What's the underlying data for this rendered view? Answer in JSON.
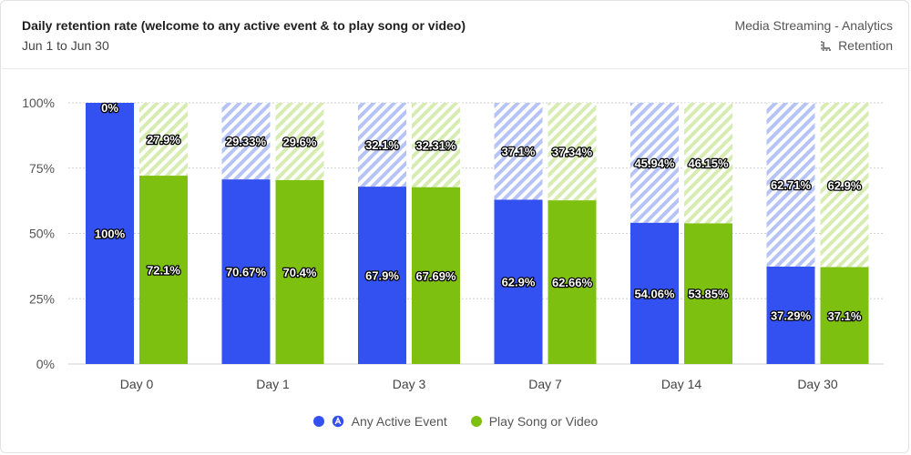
{
  "header": {
    "title": "Daily retention rate (welcome to any active event & to play song or video)",
    "date_range": "Jun 1 to Jun 30",
    "project": "Media Streaming - Analytics",
    "report_type": "Retention",
    "report_icon": "retention-icon"
  },
  "colors": {
    "series1": "#3350f0",
    "series1_hatch": "#b5c3f7",
    "series2": "#7ec010",
    "series2_hatch": "#d6ecb0",
    "grid": "#cfcfcf"
  },
  "legend": [
    {
      "label": "Any Active Event",
      "color": "#3350f0",
      "icon": "any-active-event-icon"
    },
    {
      "label": "Play Song or Video",
      "color": "#7ec010",
      "icon": ""
    }
  ],
  "chart_data": {
    "type": "bar",
    "stacked": true,
    "categories": [
      "Day 0",
      "Day 1",
      "Day 3",
      "Day 7",
      "Day 14",
      "Day 30"
    ],
    "ylim": [
      0,
      100
    ],
    "yticks": [
      "0%",
      "25%",
      "50%",
      "75%",
      "100%"
    ],
    "grid": true,
    "legend_position": "bottom",
    "series": [
      {
        "name": "Any Active Event",
        "retained": [
          100,
          70.67,
          67.9,
          62.9,
          54.06,
          37.29
        ],
        "retained_labels": [
          "100%",
          "70.67%",
          "67.9%",
          "62.9%",
          "54.06%",
          "37.29%"
        ],
        "dropped": [
          0,
          29.33,
          32.1,
          37.1,
          45.94,
          62.71
        ],
        "dropped_labels": [
          "0%",
          "29.33%",
          "32.1%",
          "37.1%",
          "45.94%",
          "62.71%"
        ]
      },
      {
        "name": "Play Song or Video",
        "retained": [
          72.1,
          70.4,
          67.69,
          62.66,
          53.85,
          37.1
        ],
        "retained_labels": [
          "72.1%",
          "70.4%",
          "67.69%",
          "62.66%",
          "53.85%",
          "37.1%"
        ],
        "dropped": [
          27.9,
          29.6,
          32.31,
          37.34,
          46.15,
          62.9
        ],
        "dropped_labels": [
          "27.9%",
          "29.6%",
          "32.31%",
          "37.34%",
          "46.15%",
          "62.9%"
        ]
      }
    ]
  }
}
